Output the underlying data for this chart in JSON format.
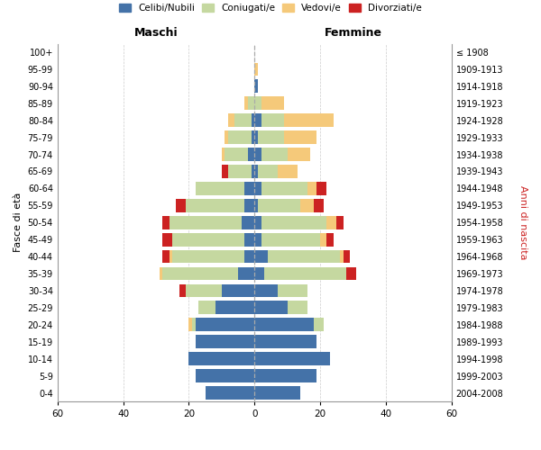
{
  "age_groups": [
    "0-4",
    "5-9",
    "10-14",
    "15-19",
    "20-24",
    "25-29",
    "30-34",
    "35-39",
    "40-44",
    "45-49",
    "50-54",
    "55-59",
    "60-64",
    "65-69",
    "70-74",
    "75-79",
    "80-84",
    "85-89",
    "90-94",
    "95-99",
    "100+"
  ],
  "birth_years": [
    "2004-2008",
    "1999-2003",
    "1994-1998",
    "1989-1993",
    "1984-1988",
    "1979-1983",
    "1974-1978",
    "1969-1973",
    "1964-1968",
    "1959-1963",
    "1954-1958",
    "1949-1953",
    "1944-1948",
    "1939-1943",
    "1934-1938",
    "1929-1933",
    "1924-1928",
    "1919-1923",
    "1914-1918",
    "1909-1913",
    "≤ 1908"
  ],
  "colors": {
    "celibi": "#4472a8",
    "coniugati": "#c5d8a0",
    "vedovi": "#f5c97a",
    "divorziati": "#cc2222"
  },
  "maschi": {
    "celibi": [
      15,
      18,
      20,
      18,
      18,
      12,
      10,
      5,
      3,
      3,
      4,
      3,
      3,
      1,
      2,
      1,
      1,
      0,
      0,
      0,
      0
    ],
    "coniugati": [
      0,
      0,
      0,
      0,
      1,
      5,
      11,
      23,
      22,
      22,
      22,
      18,
      15,
      7,
      7,
      7,
      5,
      2,
      0,
      0,
      0
    ],
    "vedovi": [
      0,
      0,
      0,
      0,
      1,
      0,
      0,
      1,
      1,
      0,
      0,
      0,
      0,
      0,
      1,
      1,
      2,
      1,
      0,
      0,
      0
    ],
    "divorziati": [
      0,
      0,
      0,
      0,
      0,
      0,
      2,
      0,
      2,
      3,
      2,
      3,
      0,
      2,
      0,
      0,
      0,
      0,
      0,
      0,
      0
    ]
  },
  "femmine": {
    "celibi": [
      14,
      19,
      23,
      19,
      18,
      10,
      7,
      3,
      4,
      2,
      2,
      1,
      2,
      1,
      2,
      1,
      2,
      0,
      1,
      0,
      0
    ],
    "coniugati": [
      0,
      0,
      0,
      0,
      3,
      6,
      9,
      25,
      22,
      18,
      20,
      13,
      14,
      6,
      8,
      8,
      7,
      2,
      0,
      0,
      0
    ],
    "vedovi": [
      0,
      0,
      0,
      0,
      0,
      0,
      0,
      0,
      1,
      2,
      3,
      4,
      3,
      6,
      7,
      10,
      15,
      7,
      0,
      1,
      0
    ],
    "divorziati": [
      0,
      0,
      0,
      0,
      0,
      0,
      0,
      3,
      2,
      2,
      2,
      3,
      3,
      0,
      0,
      0,
      0,
      0,
      0,
      0,
      0
    ]
  },
  "xlim": 60,
  "xlabel_left": "Maschi",
  "xlabel_right": "Femmine",
  "ylabel_left": "Fasce di età",
  "ylabel_right": "Anni di nascita",
  "legend_labels": [
    "Celibi/Nubili",
    "Coniugati/e",
    "Vedovi/e",
    "Divorziati/e"
  ],
  "bg_color": "#f5f5f5"
}
